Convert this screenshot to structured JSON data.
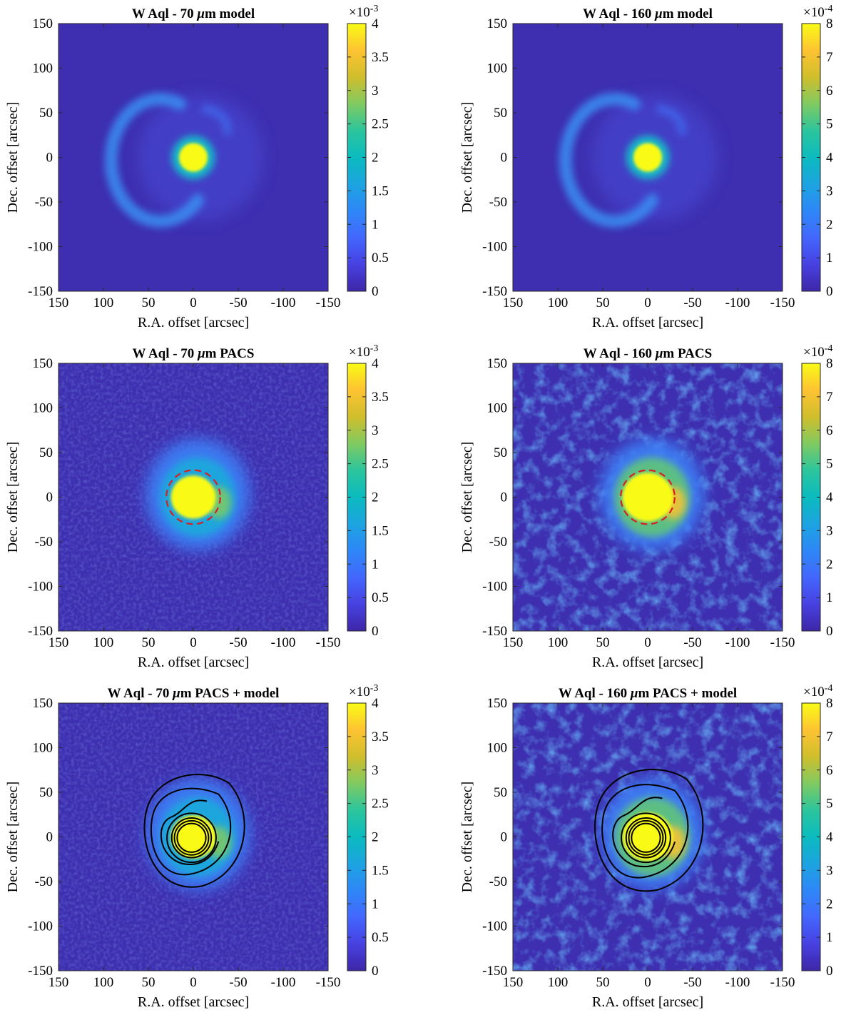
{
  "panels": [
    {
      "id": "p70model",
      "title_pre": "W Aql - 70 ",
      "title_mu": "μ",
      "title_post": "m model",
      "type": "heatmap",
      "kind": "model",
      "xlabel": "R.A. offset [arcsec]",
      "ylabel": "Dec. offset [arcsec]",
      "xlim": [
        150,
        -150
      ],
      "ylim": [
        -150,
        150
      ],
      "x_ticks": [
        "150",
        "100",
        "50",
        "0",
        "-50",
        "-100",
        "-150"
      ],
      "y_ticks": [
        "150",
        "100",
        "50",
        "0",
        "-50",
        "-100",
        "-150"
      ],
      "colorbar": {
        "multiplier": "×10",
        "exponent": "-3",
        "ticks": [
          "4",
          "3.5",
          "3",
          "2.5",
          "2",
          "1.5",
          "1",
          "0.5",
          "0"
        ],
        "range": [
          0,
          4
        ]
      },
      "dashed_circle_radius_arcsec": null,
      "contours": false
    },
    {
      "id": "p160model",
      "title_pre": "W Aql - 160 ",
      "title_mu": "μ",
      "title_post": "m model",
      "type": "heatmap",
      "kind": "model",
      "xlabel": "R.A. offset [arcsec]",
      "ylabel": "Dec. offset [arcsec]",
      "xlim": [
        150,
        -150
      ],
      "ylim": [
        -150,
        150
      ],
      "x_ticks": [
        "150",
        "100",
        "50",
        "0",
        "-50",
        "-100",
        "-150"
      ],
      "y_ticks": [
        "150",
        "100",
        "50",
        "0",
        "-50",
        "-100",
        "-150"
      ],
      "colorbar": {
        "multiplier": "×10",
        "exponent": "-4",
        "ticks": [
          "8",
          "7",
          "6",
          "5",
          "4",
          "3",
          "2",
          "1",
          "0"
        ],
        "range": [
          0,
          8
        ]
      },
      "dashed_circle_radius_arcsec": null,
      "contours": false
    },
    {
      "id": "p70pacs",
      "title_pre": "W Aql - 70 ",
      "title_mu": "μ",
      "title_post": "m PACS",
      "type": "heatmap",
      "kind": "pacs70",
      "xlabel": "R.A. offset [arcsec]",
      "ylabel": "Dec. offset [arcsec]",
      "xlim": [
        150,
        -150
      ],
      "ylim": [
        -150,
        150
      ],
      "x_ticks": [
        "150",
        "100",
        "50",
        "0",
        "-50",
        "-100",
        "-150"
      ],
      "y_ticks": [
        "150",
        "100",
        "50",
        "0",
        "-50",
        "-100",
        "-150"
      ],
      "colorbar": {
        "multiplier": "×10",
        "exponent": "-3",
        "ticks": [
          "4",
          "3.5",
          "3",
          "2.5",
          "2",
          "1.5",
          "1",
          "0.5",
          "0"
        ],
        "range": [
          0,
          4
        ]
      },
      "dashed_circle_radius_arcsec": 30,
      "contours": false
    },
    {
      "id": "p160pacs",
      "title_pre": "W Aql - 160 ",
      "title_mu": "μ",
      "title_post": "m PACS",
      "type": "heatmap",
      "kind": "pacs160",
      "xlabel": "R.A. offset [arcsec]",
      "ylabel": "Dec. offset [arcsec]",
      "xlim": [
        150,
        -150
      ],
      "ylim": [
        -150,
        150
      ],
      "x_ticks": [
        "150",
        "100",
        "50",
        "0",
        "-50",
        "-100",
        "-150"
      ],
      "y_ticks": [
        "150",
        "100",
        "50",
        "0",
        "-50",
        "-100",
        "-150"
      ],
      "colorbar": {
        "multiplier": "×10",
        "exponent": "-4",
        "ticks": [
          "8",
          "7",
          "6",
          "5",
          "4",
          "3",
          "2",
          "1",
          "0"
        ],
        "range": [
          0,
          8
        ]
      },
      "dashed_circle_radius_arcsec": 30,
      "contours": false
    },
    {
      "id": "p70both",
      "title_pre": "W Aql - 70 ",
      "title_mu": "μ",
      "title_post": "m PACS + model",
      "type": "heatmap",
      "kind": "pacs70",
      "xlabel": "R.A. offset [arcsec]",
      "ylabel": "Dec. offset [arcsec]",
      "xlim": [
        150,
        -150
      ],
      "ylim": [
        -150,
        150
      ],
      "x_ticks": [
        "150",
        "100",
        "50",
        "0",
        "-50",
        "-100",
        "-150"
      ],
      "y_ticks": [
        "150",
        "100",
        "50",
        "0",
        "-50",
        "-100",
        "-150"
      ],
      "colorbar": {
        "multiplier": "×10",
        "exponent": "-3",
        "ticks": [
          "4",
          "3.5",
          "3",
          "2.5",
          "2",
          "1.5",
          "1",
          "0.5",
          "0"
        ],
        "range": [
          0,
          4
        ]
      },
      "dashed_circle_radius_arcsec": null,
      "contours": true
    },
    {
      "id": "p160both",
      "title_pre": "W Aql - 160 ",
      "title_mu": "μ",
      "title_post": "m PACS + model",
      "type": "heatmap",
      "kind": "pacs160",
      "xlabel": "R.A. offset [arcsec]",
      "ylabel": "Dec. offset [arcsec]",
      "xlim": [
        150,
        -150
      ],
      "ylim": [
        -150,
        150
      ],
      "x_ticks": [
        "150",
        "100",
        "50",
        "0",
        "-50",
        "-100",
        "-150"
      ],
      "y_ticks": [
        "150",
        "100",
        "50",
        "0",
        "-50",
        "-100",
        "-150"
      ],
      "colorbar": {
        "multiplier": "×10",
        "exponent": "-4",
        "ticks": [
          "8",
          "7",
          "6",
          "5",
          "4",
          "3",
          "2",
          "1",
          "0"
        ],
        "range": [
          0,
          8
        ]
      },
      "dashed_circle_radius_arcsec": null,
      "contours": true
    }
  ],
  "colors": {
    "colormap": "parula",
    "dashed_circle": "#d62020",
    "contour": "#000000"
  }
}
